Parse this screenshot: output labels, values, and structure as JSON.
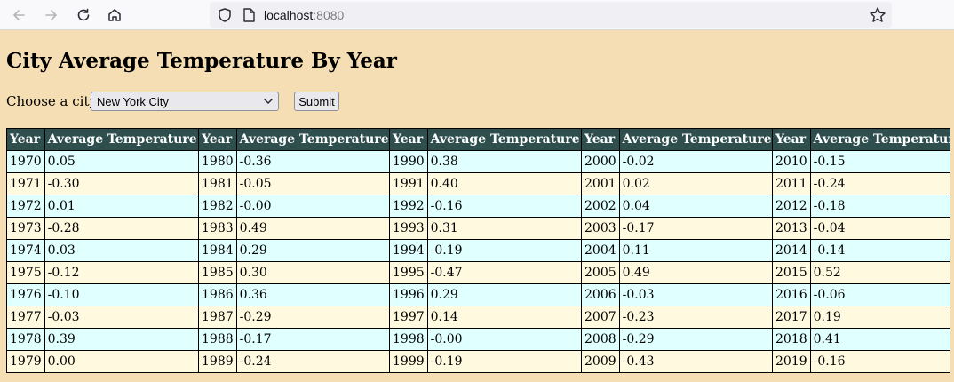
{
  "browser": {
    "url_host": "localhost",
    "url_port": ":8080"
  },
  "page": {
    "title": "City Average Temperature By Year",
    "form": {
      "label": "Choose a city:",
      "selected_city": "New York City",
      "submit_label": "Submit"
    }
  },
  "tables": [
    {
      "headers": [
        "Year",
        "Average Temperature"
      ],
      "rows": [
        [
          "1970",
          "0.05"
        ],
        [
          "1971",
          "-0.30"
        ],
        [
          "1972",
          "0.01"
        ],
        [
          "1973",
          "-0.28"
        ],
        [
          "1974",
          "0.03"
        ],
        [
          "1975",
          "-0.12"
        ],
        [
          "1976",
          "-0.10"
        ],
        [
          "1977",
          "-0.03"
        ],
        [
          "1978",
          "0.39"
        ],
        [
          "1979",
          "0.00"
        ]
      ]
    },
    {
      "headers": [
        "Year",
        "Average Temperature"
      ],
      "rows": [
        [
          "1980",
          "-0.36"
        ],
        [
          "1981",
          "-0.05"
        ],
        [
          "1982",
          "-0.00"
        ],
        [
          "1983",
          "0.49"
        ],
        [
          "1984",
          "0.29"
        ],
        [
          "1985",
          "0.30"
        ],
        [
          "1986",
          "0.36"
        ],
        [
          "1987",
          "-0.29"
        ],
        [
          "1988",
          "-0.17"
        ],
        [
          "1989",
          "-0.24"
        ]
      ]
    },
    {
      "headers": [
        "Year",
        "Average Temperature"
      ],
      "rows": [
        [
          "1990",
          "0.38"
        ],
        [
          "1991",
          "0.40"
        ],
        [
          "1992",
          "-0.16"
        ],
        [
          "1993",
          "0.31"
        ],
        [
          "1994",
          "-0.19"
        ],
        [
          "1995",
          "-0.47"
        ],
        [
          "1996",
          "0.29"
        ],
        [
          "1997",
          "0.14"
        ],
        [
          "1998",
          "-0.00"
        ],
        [
          "1999",
          "-0.19"
        ]
      ]
    },
    {
      "headers": [
        "Year",
        "Average Temperature"
      ],
      "rows": [
        [
          "2000",
          "-0.02"
        ],
        [
          "2001",
          "0.02"
        ],
        [
          "2002",
          "0.04"
        ],
        [
          "2003",
          "-0.17"
        ],
        [
          "2004",
          "0.11"
        ],
        [
          "2005",
          "0.49"
        ],
        [
          "2006",
          "-0.03"
        ],
        [
          "2007",
          "-0.23"
        ],
        [
          "2008",
          "-0.29"
        ],
        [
          "2009",
          "-0.43"
        ]
      ]
    },
    {
      "headers": [
        "Year",
        "Average Temperature"
      ],
      "rows": [
        [
          "2010",
          "-0.15"
        ],
        [
          "2011",
          "-0.24"
        ],
        [
          "2012",
          "-0.18"
        ],
        [
          "2013",
          "-0.04"
        ],
        [
          "2014",
          "-0.14"
        ],
        [
          "2015",
          "0.52"
        ],
        [
          "2016",
          "-0.06"
        ],
        [
          "2017",
          "0.19"
        ],
        [
          "2018",
          "0.41"
        ],
        [
          "2019",
          "-0.16"
        ]
      ]
    }
  ],
  "colors": {
    "page_background": "#f5deb3",
    "header_background": "#2f4f4f",
    "row_odd": "#e0ffff",
    "row_even": "#fffadf"
  },
  "icons": [
    "back-arrow-icon",
    "forward-arrow-icon",
    "reload-icon",
    "home-icon",
    "shield-icon",
    "page-icon",
    "star-icon",
    "chevron-down-icon"
  ]
}
